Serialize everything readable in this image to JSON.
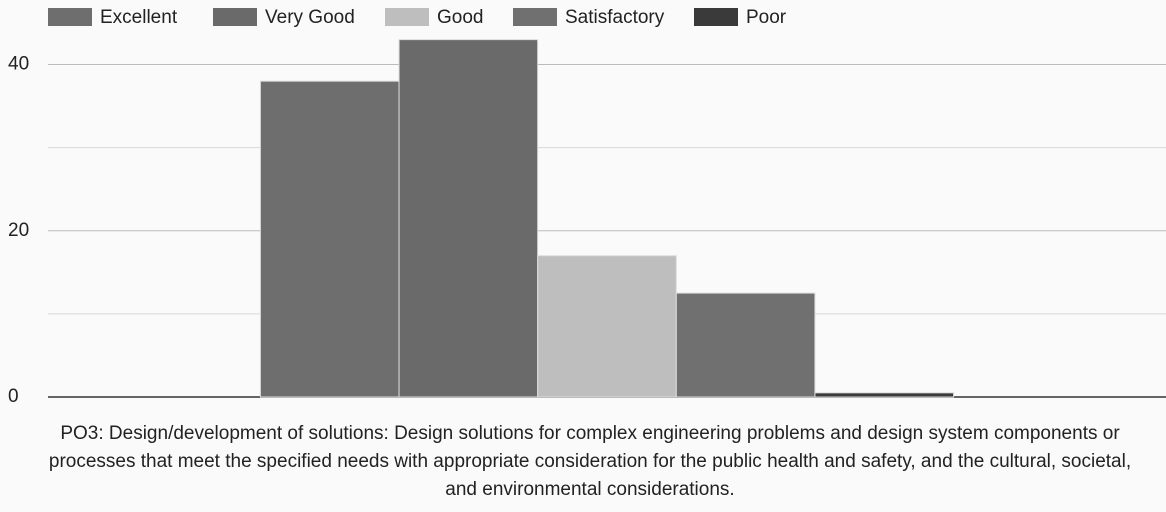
{
  "chart_data": {
    "type": "bar",
    "categories": [
      "PO3: Design/development of solutions: Design solutions for complex engineering problems and design system components or processes that meet the specified needs with appropriate consideration for the public health and safety, and the cultural, societal, and environmental considerations."
    ],
    "series": [
      {
        "name": "Excellent",
        "color": "#6e6e6e",
        "values": [
          38
        ]
      },
      {
        "name": "Very Good",
        "color": "#6a6a6a",
        "values": [
          43
        ]
      },
      {
        "name": "Good",
        "color": "#bebebe",
        "values": [
          17
        ]
      },
      {
        "name": "Satisfactory",
        "color": "#707070",
        "values": [
          12.5
        ]
      },
      {
        "name": "Poor",
        "color": "#3a3a3a",
        "values": [
          0.5
        ]
      }
    ],
    "ylim": [
      0,
      45
    ],
    "yticks": [
      0,
      20,
      40
    ],
    "minor_yticks": [
      10,
      30
    ],
    "grid": true,
    "legend": "top"
  }
}
